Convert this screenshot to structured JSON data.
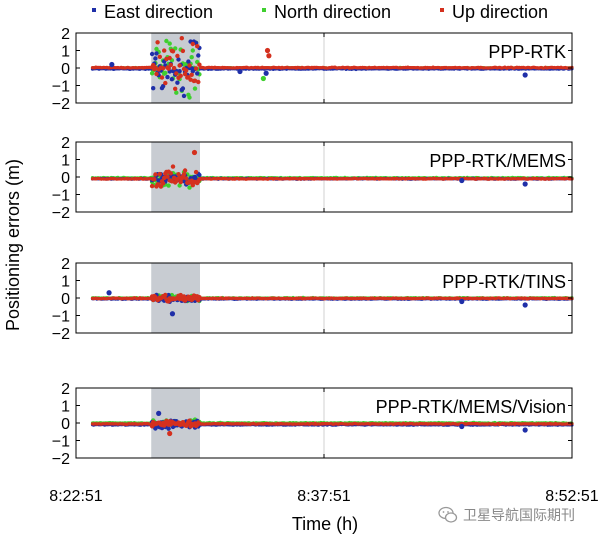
{
  "legend": [
    {
      "label": "East direction",
      "color": "#1f2fa8"
    },
    {
      "label": "North direction",
      "color": "#3fcf2f"
    },
    {
      "label": "Up direction",
      "color": "#d4301e"
    }
  ],
  "watermark": {
    "text": "卫星导航国际期刊"
  },
  "chart_data": {
    "type": "scatter",
    "ylabel": "Positioning errors (m)",
    "xlabel": "Time (h)",
    "x_ticks": [
      "8:22:51",
      "8:37:51",
      "8:52:51"
    ],
    "x_range_seconds": [
      0,
      1800
    ],
    "ylim": [
      -2,
      2
    ],
    "y_ticks": [
      "2",
      "1",
      "0",
      "−1",
      "−2"
    ],
    "y_tick_values": [
      2,
      1,
      0,
      -1,
      -2
    ],
    "shaded_interval_seconds": [
      273,
      450
    ],
    "series_names": [
      "East direction",
      "North direction",
      "Up direction"
    ],
    "series_colors": [
      "#1f2fa8",
      "#3fcf2f",
      "#d4301e"
    ],
    "panels": [
      {
        "title": "PPP-RTK",
        "baseline": [
          -0.05,
          0.0,
          0.02
        ],
        "spread_in_shaded": [
          1.6,
          1.7,
          1.9
        ],
        "outliers": [
          {
            "series": 0,
            "t": 130,
            "y": 0.2
          },
          {
            "series": 2,
            "t": 695,
            "y": 1.0
          },
          {
            "series": 2,
            "t": 700,
            "y": 0.7
          },
          {
            "series": 1,
            "t": 680,
            "y": -0.6
          },
          {
            "series": 0,
            "t": 690,
            "y": -0.3
          },
          {
            "series": 0,
            "t": 1630,
            "y": -0.4
          },
          {
            "series": 0,
            "t": 595,
            "y": -0.2
          }
        ]
      },
      {
        "title": "PPP-RTK/MEMS",
        "baseline": [
          -0.1,
          -0.05,
          -0.1
        ],
        "spread_in_shaded": [
          0.9,
          1.2,
          1.5
        ],
        "outliers": [
          {
            "series": 0,
            "t": 1400,
            "y": -0.2
          },
          {
            "series": 0,
            "t": 1630,
            "y": -0.4
          },
          {
            "series": 2,
            "t": 430,
            "y": 1.4
          }
        ]
      },
      {
        "title": "PPP-RTK/TINS",
        "baseline": [
          -0.05,
          0.0,
          -0.02
        ],
        "spread_in_shaded": [
          0.5,
          0.4,
          0.6
        ],
        "outliers": [
          {
            "series": 0,
            "t": 120,
            "y": 0.3
          },
          {
            "series": 0,
            "t": 350,
            "y": -0.9
          },
          {
            "series": 0,
            "t": 1400,
            "y": -0.2
          },
          {
            "series": 0,
            "t": 1630,
            "y": -0.4
          }
        ]
      },
      {
        "title": "PPP-RTK/MEMS/Vision",
        "baseline": [
          -0.1,
          0.0,
          -0.05
        ],
        "spread_in_shaded": [
          0.6,
          0.4,
          0.5
        ],
        "outliers": [
          {
            "series": 0,
            "t": 300,
            "y": 0.55
          },
          {
            "series": 2,
            "t": 340,
            "y": -0.6
          },
          {
            "series": 0,
            "t": 1630,
            "y": -0.4
          },
          {
            "series": 0,
            "t": 1400,
            "y": -0.2
          }
        ]
      }
    ]
  }
}
